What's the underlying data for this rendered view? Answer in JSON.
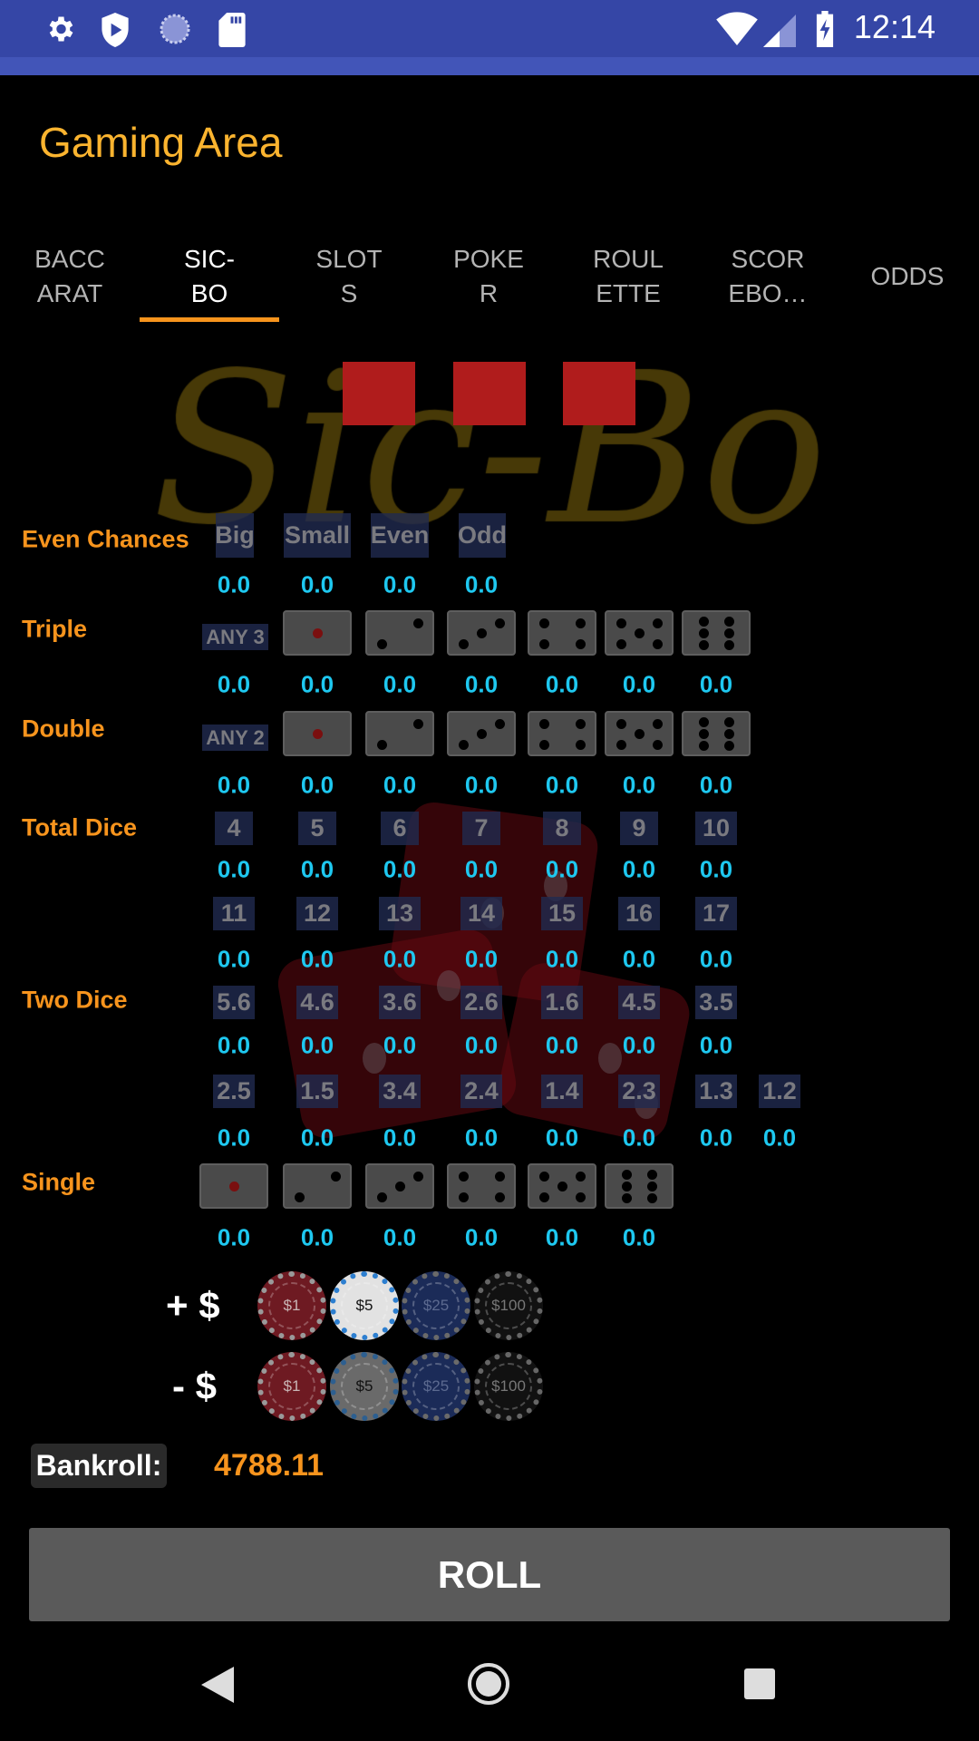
{
  "status_bar": {
    "time": "12:14",
    "icons": [
      "settings-icon",
      "shield-play-icon",
      "loading-circle-icon",
      "sd-card-icon",
      "wifi-icon",
      "signal-icon",
      "battery-charging-icon"
    ]
  },
  "header": {
    "title": "Gaming Area"
  },
  "tabs": [
    {
      "label": "BACC\nARAT",
      "selected": false
    },
    {
      "label": "SIC-\nBO",
      "selected": true
    },
    {
      "label": "SLOT\nS",
      "selected": false
    },
    {
      "label": "POKE\nR",
      "selected": false
    },
    {
      "label": "ROUL\nETTE",
      "selected": false
    },
    {
      "label": "SCOR\nEBO…",
      "selected": false
    },
    {
      "label": "ODDS",
      "selected": false
    }
  ],
  "logo_text": "Sic-Bo",
  "colors": {
    "accent": "#f7941d",
    "title": "#fbb42f",
    "value": "#1ec8f0",
    "status_bar": "#3546a6",
    "dice_result": "#b01c1c"
  },
  "board": {
    "even_chances": {
      "label": "Even Chances",
      "bets": [
        "Big",
        "Small",
        "Even",
        "Odd"
      ],
      "values": [
        "0.0",
        "0.0",
        "0.0",
        "0.0"
      ]
    },
    "triple": {
      "label": "Triple",
      "any": "ANY 3",
      "faces": [
        1,
        2,
        3,
        4,
        5,
        6
      ],
      "values": [
        "0.0",
        "0.0",
        "0.0",
        "0.0",
        "0.0",
        "0.0",
        "0.0"
      ]
    },
    "double": {
      "label": "Double",
      "any": "ANY 2",
      "faces": [
        1,
        2,
        3,
        4,
        5,
        6
      ],
      "values": [
        "0.0",
        "0.0",
        "0.0",
        "0.0",
        "0.0",
        "0.0",
        "0.0"
      ]
    },
    "total_dice": {
      "label": "Total Dice",
      "row1": {
        "bets": [
          "4",
          "5",
          "6",
          "7",
          "8",
          "9",
          "10"
        ],
        "values": [
          "0.0",
          "0.0",
          "0.0",
          "0.0",
          "0.0",
          "0.0",
          "0.0"
        ]
      },
      "row2": {
        "bets": [
          "11",
          "12",
          "13",
          "14",
          "15",
          "16",
          "17"
        ],
        "values": [
          "0.0",
          "0.0",
          "0.0",
          "0.0",
          "0.0",
          "0.0",
          "0.0"
        ]
      }
    },
    "two_dice": {
      "label": "Two Dice",
      "row1": {
        "bets": [
          "5.6",
          "4.6",
          "3.6",
          "2.6",
          "1.6",
          "4.5",
          "3.5"
        ],
        "values": [
          "0.0",
          "0.0",
          "0.0",
          "0.0",
          "0.0",
          "0.0",
          "0.0"
        ]
      },
      "row2": {
        "bets": [
          "2.5",
          "1.5",
          "3.4",
          "2.4",
          "1.4",
          "2.3",
          "1.3",
          "1.2"
        ],
        "values": [
          "0.0",
          "0.0",
          "0.0",
          "0.0",
          "0.0",
          "0.0",
          "0.0",
          "0.0"
        ]
      }
    },
    "single": {
      "label": "Single",
      "faces": [
        1,
        2,
        3,
        4,
        5,
        6
      ],
      "values": [
        "0.0",
        "0.0",
        "0.0",
        "0.0",
        "0.0",
        "0.0"
      ]
    }
  },
  "chips": {
    "add_label": "+ $",
    "remove_label": "- $",
    "denominations": [
      "$1",
      "$5",
      "$25",
      "$100"
    ],
    "selected": "$5"
  },
  "bankroll": {
    "label": "Bankroll:",
    "value": "4788.11"
  },
  "roll_button": "ROLL",
  "nav": {
    "back": "back-icon",
    "home": "home-icon",
    "recents": "recents-icon"
  }
}
